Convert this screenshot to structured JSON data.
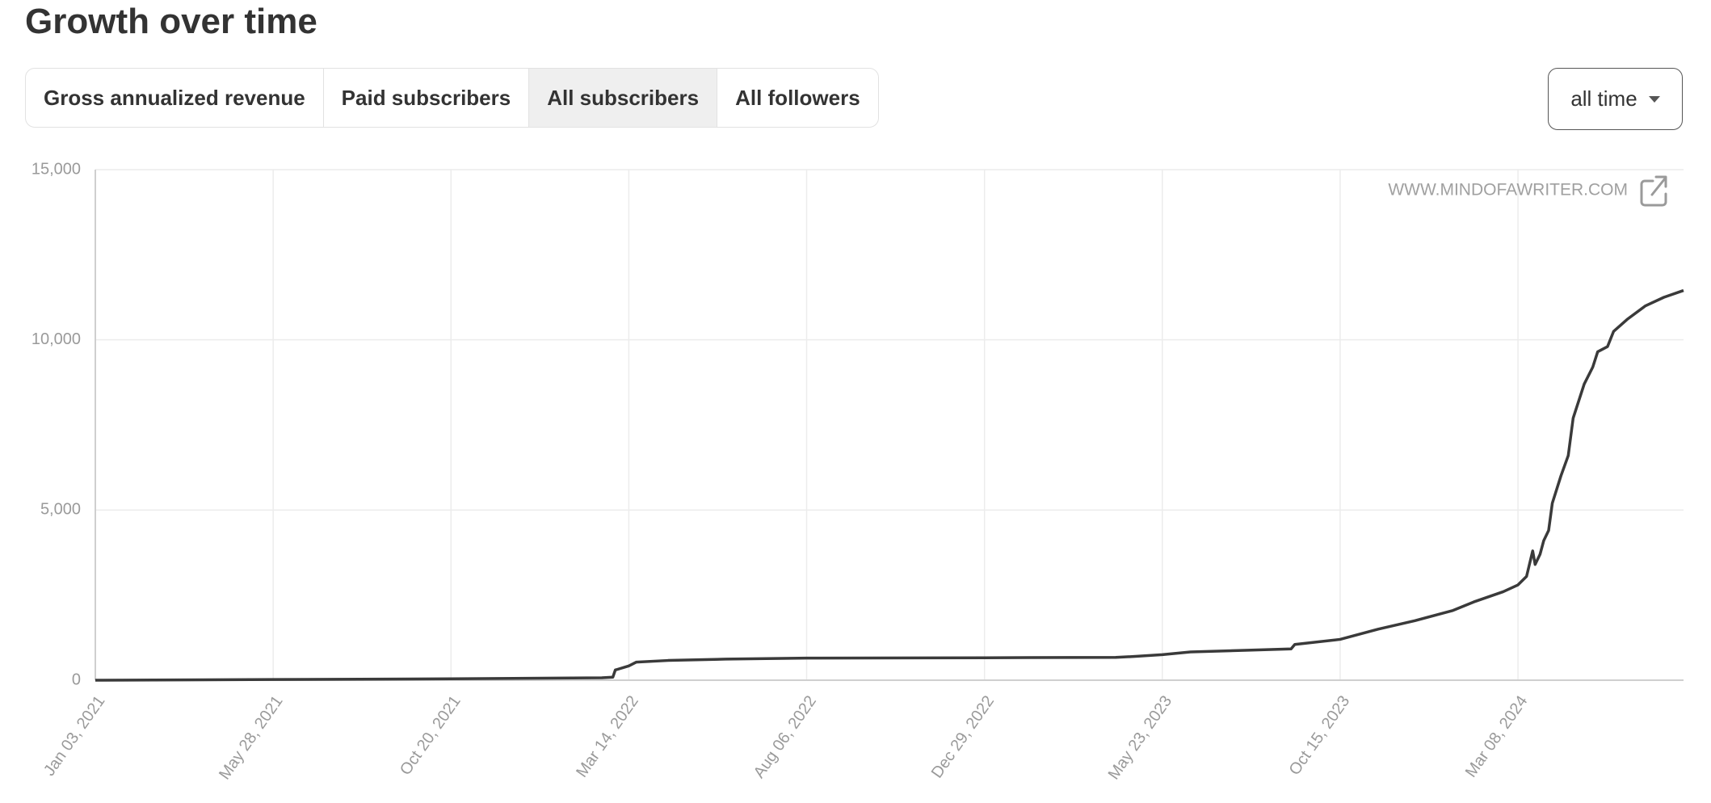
{
  "chart_data": {
    "type": "line",
    "title": "Growth over time",
    "tabs": [
      "Gross annualized revenue",
      "Paid subscribers",
      "All subscribers",
      "All followers"
    ],
    "active_tab": 2,
    "range": "all time",
    "watermark": "WWW.MINDOFAWRITER.COM",
    "color": "#3a3a3a",
    "grid": true,
    "x": [
      "2021-01-03",
      "2021-05-28",
      "2021-10-20",
      "2022-02-20",
      "2022-03-01",
      "2022-03-03",
      "2022-03-14",
      "2022-03-20",
      "2022-04-15",
      "2022-06-01",
      "2022-08-06",
      "2022-12-29",
      "2023-04-15",
      "2023-05-01",
      "2023-05-23",
      "2023-06-15",
      "2023-08-01",
      "2023-09-05",
      "2023-09-08",
      "2023-10-15",
      "2023-11-15",
      "2023-12-15",
      "2024-01-15",
      "2024-02-01",
      "2024-02-25",
      "2024-03-08",
      "2024-03-15",
      "2024-03-20",
      "2024-03-22",
      "2024-03-26",
      "2024-03-29",
      "2024-04-02",
      "2024-04-05",
      "2024-04-12",
      "2024-04-18",
      "2024-04-22",
      "2024-05-01",
      "2024-05-08",
      "2024-05-12",
      "2024-05-20",
      "2024-05-25",
      "2024-06-05",
      "2024-06-20",
      "2024-07-05",
      "2024-07-21"
    ],
    "values": [
      0,
      20,
      40,
      70,
      90,
      300,
      420,
      530,
      580,
      620,
      650,
      660,
      670,
      700,
      750,
      830,
      880,
      920,
      1050,
      1200,
      1500,
      1750,
      2050,
      2300,
      2600,
      2800,
      3050,
      3800,
      3400,
      3700,
      4100,
      4400,
      5200,
      6000,
      6600,
      7700,
      8700,
      9200,
      9650,
      9800,
      10250,
      10600,
      11000,
      11250,
      11450
    ],
    "xlim": [
      "2021-01-03",
      "2024-07-21"
    ],
    "xticks": [
      {
        "value": "2021-01-03",
        "label": "Jan 03, 2021"
      },
      {
        "value": "2021-05-28",
        "label": "May 28, 2021"
      },
      {
        "value": "2021-10-20",
        "label": "Oct 20, 2021"
      },
      {
        "value": "2022-03-14",
        "label": "Mar 14, 2022"
      },
      {
        "value": "2022-08-06",
        "label": "Aug 06, 2022"
      },
      {
        "value": "2022-12-29",
        "label": "Dec 29, 2022"
      },
      {
        "value": "2023-05-23",
        "label": "May 23, 2023"
      },
      {
        "value": "2023-10-15",
        "label": "Oct 15, 2023"
      },
      {
        "value": "2024-03-08",
        "label": "Mar 08, 2024"
      }
    ],
    "ylim": [
      0,
      15000
    ],
    "yticks": [
      0,
      {
        "value": 5000,
        "label": "5,000"
      },
      {
        "value": 10000,
        "label": "10,000"
      },
      {
        "value": 15000,
        "label": "15,000"
      }
    ]
  }
}
